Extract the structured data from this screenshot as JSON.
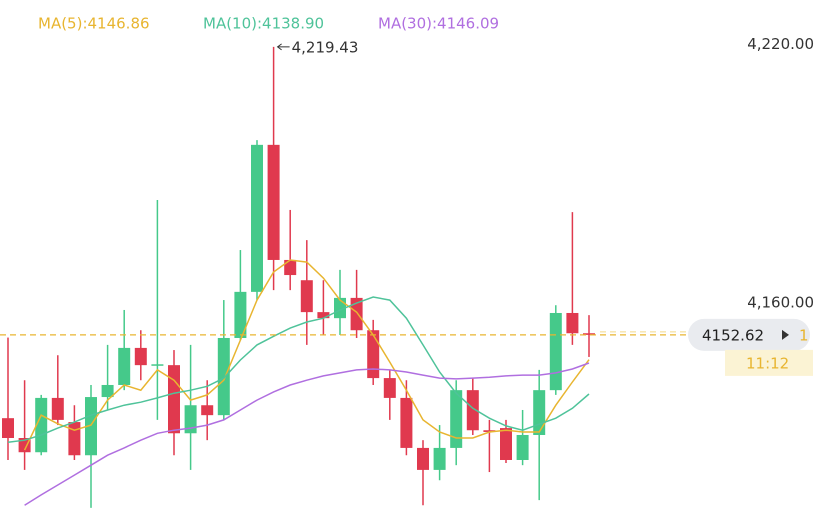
{
  "chart_data": {
    "type": "candlestick",
    "categories": [
      null,
      null,
      null,
      null,
      null,
      null,
      null,
      null,
      null,
      null,
      null,
      null,
      null,
      null,
      null,
      null,
      null,
      null,
      null,
      null,
      null,
      null,
      null,
      null,
      null,
      null,
      null,
      null,
      null,
      null,
      null,
      null,
      null,
      null,
      null,
      null
    ],
    "open": [
      4133.3,
      4128.7,
      4125.4,
      4138.0,
      4132.4,
      4124.7,
      4138.2,
      4141.0,
      4149.6,
      4145.6,
      4145.6,
      4129.8,
      4136.3,
      4134.0,
      4151.9,
      4162.6,
      4196.7,
      4170.0,
      4165.3,
      4157.9,
      4156.5,
      4161.2,
      4153.7,
      4142.6,
      4138.0,
      4126.4,
      4121.3,
      4126.4,
      4139.8,
      4130.5,
      4131.0,
      4123.6,
      4129.4,
      4139.8,
      4157.7,
      4153.0
    ],
    "high": [
      4152.0,
      4142.1,
      4138.7,
      4147.9,
      4136.3,
      4141.0,
      4150.3,
      4158.4,
      4153.7,
      4183.9,
      4149.1,
      4150.3,
      4142.1,
      4160.7,
      4172.3,
      4197.8,
      4219.43,
      4181.6,
      4174.6,
      4165.3,
      4167.7,
      4167.7,
      4156.1,
      4144.5,
      4142.1,
      4128.2,
      4131.7,
      4142.1,
      4142.6,
      4132.9,
      4132.9,
      4135.2,
      4144.5,
      4159.5,
      4181.1,
      4157.2
    ],
    "low": [
      4123.6,
      4121.3,
      4124.7,
      4131.7,
      4123.6,
      4112.5,
      4135.2,
      4139.8,
      4142.1,
      4132.9,
      4124.7,
      4121.3,
      4128.2,
      4132.9,
      4151.4,
      4160.7,
      4163.0,
      4163.0,
      4150.3,
      4152.6,
      4152.6,
      4151.9,
      4141.0,
      4132.9,
      4124.7,
      4113.1,
      4118.9,
      4122.4,
      4129.4,
      4120.8,
      4122.9,
      4122.4,
      4114.3,
      4138.7,
      4150.3,
      4147.5
    ],
    "close": [
      4128.7,
      4125.4,
      4138.0,
      4132.9,
      4124.7,
      4138.2,
      4141.0,
      4149.6,
      4145.6,
      4145.8,
      4129.8,
      4136.3,
      4134.0,
      4151.9,
      4162.6,
      4196.7,
      4170.0,
      4166.5,
      4157.9,
      4156.5,
      4161.2,
      4153.7,
      4142.6,
      4138.0,
      4126.4,
      4121.3,
      4126.4,
      4139.8,
      4130.5,
      4130.1,
      4123.6,
      4129.4,
      4139.8,
      4157.7,
      4153.0,
      4152.62
    ],
    "up_color": "#45c98a",
    "down_color": "#e0394e",
    "series": [
      {
        "name": "MA(5):4146.86",
        "color": "#e8b530",
        "values": [
          null,
          4125.9,
          4134.0,
          4132.0,
          4130.5,
          4131.7,
          4137.5,
          4141.0,
          4139.8,
          4144.5,
          4142.1,
          4137.5,
          4138.7,
          4142.1,
          4151.4,
          4160.7,
          4167.2,
          4170.0,
          4169.5,
          4165.8,
          4160.7,
          4157.9,
          4152.6,
          4146.3,
          4139.8,
          4132.9,
          4130.1,
          4128.7,
          4128.7,
          4130.1,
          4130.5,
          4130.1,
          4130.1,
          4136.3,
          4141.7,
          4146.86
        ]
      },
      {
        "name": "MA(10):4138.90",
        "color": "#4fc39a",
        "values": [
          4127.7,
          4128.2,
          4129.4,
          4131.0,
          4132.4,
          4134.0,
          4135.2,
          4136.3,
          4137.0,
          4138.0,
          4139.1,
          4139.8,
          4140.7,
          4142.6,
          4146.8,
          4150.3,
          4152.3,
          4154.2,
          4155.6,
          4156.5,
          4158.4,
          4160.0,
          4161.4,
          4160.7,
          4156.5,
          4150.3,
          4144.0,
          4139.1,
          4135.6,
          4133.3,
          4131.5,
          4130.5,
          4131.9,
          4133.3,
          4135.6,
          4138.9
        ]
      },
      {
        "name": "MA(30):4146.09",
        "color": "#b06fe0",
        "values": [
          null,
          4113.1,
          4115.5,
          4117.8,
          4120.1,
          4122.4,
          4124.7,
          4126.4,
          4128.2,
          4129.8,
          4130.5,
          4131.0,
          4131.7,
          4132.9,
          4135.2,
          4137.5,
          4139.4,
          4141.0,
          4142.1,
          4143.1,
          4143.8,
          4144.5,
          4144.7,
          4144.5,
          4144.0,
          4143.3,
          4142.6,
          4142.4,
          4142.6,
          4142.8,
          4143.1,
          4143.3,
          4143.3,
          4143.8,
          4144.7,
          4146.09
        ]
      }
    ],
    "ylim": [
      4112,
      4230.3
    ],
    "yticks": [
      {
        "value": 4220,
        "label": "4,220.00"
      },
      {
        "value": 4160,
        "label": "4,160.00"
      }
    ],
    "annotation": {
      "value": 4219.43,
      "label": "4,219.43"
    },
    "last_price": {
      "value": 4152.62,
      "label": "4152.62",
      "color": "#e8b530"
    },
    "tag_extra": "1",
    "countdown": "11:12"
  }
}
